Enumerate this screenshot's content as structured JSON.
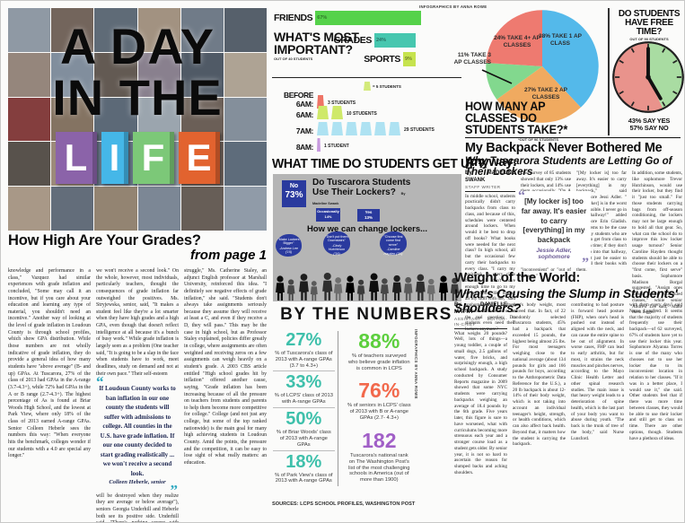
{
  "masthead": {
    "line1": "A DAY",
    "line2": "IN THE",
    "life": [
      "L",
      "I",
      "F",
      "E"
    ]
  },
  "credits": {
    "top": "INFOGRAPHICS BY ANNA ROWE",
    "side": "INFOGRAPHICS BY ANNA ROWE"
  },
  "whats_important": {
    "title_line1": "WHAT'S MOST",
    "title_line2": "IMPORTANT?",
    "note": "OUT OF 40 STUDENTS",
    "bars": [
      {
        "label": "FRIENDS",
        "pct": "67%"
      },
      {
        "label": "GRADES",
        "pct": "24%"
      },
      {
        "label": "SPORTS",
        "pct": "9%"
      }
    ],
    "chart_data": {
      "type": "bar",
      "categories": [
        "Friends",
        "Grades",
        "Sports"
      ],
      "values": [
        67,
        24,
        9
      ],
      "title": "What's Most Important?",
      "note": "out of 40 students",
      "colors": [
        "#55d24a",
        "#46c7af",
        "#c6e34e"
      ]
    }
  },
  "get_up": {
    "title": "WHAT TIME DO STUDENTS GET UP?",
    "legend": "= 5 STUDENTS",
    "rows": [
      {
        "label": "BEFORE 6AM:",
        "count": "3 STUDENTS"
      },
      {
        "label": "6AM:",
        "count": "10 STUDENTS"
      },
      {
        "label": "7AM:",
        "count": "29 STUDENTS"
      },
      {
        "label": "8AM:",
        "count": "1 STUDENT"
      }
    ],
    "chart_data": {
      "type": "pictograph-bar",
      "categories": [
        "Before 6AM",
        "6AM",
        "7AM",
        "8AM"
      ],
      "values": [
        3,
        10,
        29,
        1
      ],
      "unit": "5 students per icon",
      "title": "What Time Do Students Get Up?",
      "colors": [
        "#ee7466",
        "#cfe969",
        "#aee2f2",
        "#c79ade"
      ]
    }
  },
  "lockers_box": {
    "no_label": "No",
    "no_pct": "73%",
    "title": "Do Tuscarora Students Use Their Lockers?",
    "byline": "By Madeline Swank",
    "occasionally": "Occasionally",
    "occasionally_pct": "14%",
    "yes": "Yes",
    "yes_pct": "13%",
    "subtitle": "How we can change lockers...",
    "bubbles": [
      {
        "quote": "\"Make Lockers Bigger\"",
        "attrib": "-Andrew Lee ('15)"
      },
      {
        "quote": "\"Don't put them Downstairs\"",
        "attrib": "-Cindy Hutchinson ('16)"
      },
      {
        "quote": "\"Choose first come first serve\"",
        "attrib": "-Caroline Hayden ('15)"
      }
    ],
    "chart_data": {
      "type": "pie",
      "labels": [
        "No",
        "Occasionally",
        "Yes"
      ],
      "values": [
        73,
        14,
        13
      ],
      "title": "Do Tuscarora Students Use Their Lockers?"
    }
  },
  "by_the_numbers": {
    "title": "BY THE NUMBERS",
    "left": [
      {
        "value": "27%",
        "caption": "% of Tuscarora's class of 2013 with A-range GPAs (3.7 to 4.3+)"
      },
      {
        "value": "33%",
        "caption": "% of LCPS' class of 2013 with A-range GPAs"
      },
      {
        "value": "50%",
        "caption": "% of Briar Woods' class of 2013 with A-range GPAs"
      },
      {
        "value": "18%",
        "caption": "% of Park View's class of 2013 with A-range GPAs"
      }
    ],
    "right": [
      {
        "value": "88%",
        "caption": "% of teachers surveyed who believe grade inflation is common in LCPS"
      },
      {
        "value": "76%",
        "caption": "% of seniors in LCPS' class of 2013 with B or A-range GPAs (2.7- 4.3+)"
      },
      {
        "value": "182",
        "caption": "Tuscarora's national rank on The Washington Post's list of the most challenging schools in America (out of more than 1900)"
      }
    ],
    "sources": "SOURCES: LCPS SCHOOL PROFILES, WASHINGTON POST",
    "colors": {
      "teal": "#3ec0ab",
      "green": "#5ccf3d",
      "coral": "#f2694c",
      "purple": "#a15fc7"
    },
    "chart_data": {
      "type": "table",
      "stats": [
        {
          "value": 27,
          "unit": "%",
          "label": "Tuscarora class of 2013 with A-range GPAs (3.7 to 4.3+)"
        },
        {
          "value": 33,
          "unit": "%",
          "label": "LCPS class of 2013 with A-range GPAs"
        },
        {
          "value": 50,
          "unit": "%",
          "label": "Briar Woods class of 2013 with A-range GPAs"
        },
        {
          "value": 18,
          "unit": "%",
          "label": "Park View class of 2013 with A-range GPAs"
        },
        {
          "value": 88,
          "unit": "%",
          "label": "teachers surveyed who believe grade inflation is common in LCPS"
        },
        {
          "value": 76,
          "unit": "%",
          "label": "seniors in LCPS class of 2013 with B or A-range GPAs (2.7- 4.3+)"
        },
        {
          "value": 182,
          "unit": "rank",
          "label": "Tuscarora's national rank on The Washington Post's most challenging schools list (out of more than 1900)"
        }
      ]
    }
  },
  "ap_pie": {
    "title_line1": "HOW MANY AP",
    "title_line2": "CLASSES DO",
    "title_line3": "STUDENTS TAKE?*",
    "note": "*OUT OF 96 STUDENTS",
    "slice1": "38% TAKE 1 AP CLASS",
    "slice2": "27% TAKE 2 AP CLASSES",
    "slice3": "11% TAKE 3 AP CLASSES",
    "slice4": "24% TAKE 4+ AP CLASSES",
    "chart_data": {
      "type": "pie",
      "labels": [
        "1 AP class",
        "2 AP classes",
        "3 AP classes",
        "4+ AP classes"
      ],
      "values": [
        38,
        27,
        11,
        24
      ],
      "colors": [
        "#54b9ea",
        "#f0aa60",
        "#82d88e",
        "#ee7a70"
      ],
      "note": "out of 96 students",
      "title": "How Many AP Classes Do Students Take?"
    }
  },
  "free_time": {
    "title_line1": "DO STUDENTS",
    "title_line2": "HAVE FREE TIME?",
    "note": "OUT OF 90 STUDENTS",
    "result_yes": "43% SAY YES",
    "result_no": "57% SAY NO",
    "chart_data": {
      "type": "pie",
      "labels": [
        "Yes",
        "No"
      ],
      "values": [
        43,
        57
      ],
      "colors": [
        "#a9dca2",
        "#e9938c"
      ],
      "title": "Do Students Have Free Time?",
      "note": "out of 90 students"
    }
  },
  "grades_article": {
    "headline": "How High Are Your Grades?",
    "continued": "from page 1",
    "col1": "knowledge and performance in a class,\" Vazquez had similar experiences with grade inflation and concluded, \"Some may call it an incentive, but if you care about your education and learning any type of material, you shouldn't need an incentive.\" Another way of looking at the level of grade inflation in Loudoun County is through school profiles, which show GPA distribution. While those numbers are not wholly indicative of grade inflation, they do provide a general idea of how many students have \"above average\" (B- and up) GPAs. At Tuscarora, 27% of the class of 2013 had GPAs in the A-range (3.7-4.3+), while 72% had GPAs in the A or B range (2.7-4.3+). The highest percentage of As is found at Briar Woods High School, and the lowest at Park View, where only 18% of the class of 2013 earned A-range GPAs. Senior Colleen Heberle sees the numbers this way: \"When everyone hits the benchmark, colleges wonder if our students with a 4.0 are special any longer.\"",
    "col2_top": "we won't receive a second look.\" On the whole, however, most individuals, particularly teachers, thought the consequences of grade inflation far outweighed the positives. Ms. Stryjewska, senior, said, \"It makes a student feel like they're a lot smarter when they have high grades and a high GPA, even though that doesn't reflect intelligence at all because it's a bunch of busy work.\" While grade inflation is largely seen as a problem (One teacher said, \"It is going to be a slap in the face when students have to work, meet deadlines, study on demand and not at their own pace.\" Their self-esteem",
    "pull_quote": "If Loudoun County works to ban inflation in our one county the students will suffer with admissions to college. All counties in the U.S. have grade inflation. If our one county decided to start grading realistically ... we won't receive a second look.",
    "pull_attrib": "Colleen Heberle, senior",
    "col2_bottom": "will be destroyed when they realize they are average or below average\"), seniors Georgia Underhill and Heberle both see its positive side. Underhill said, \"There's nothing wrong with grade inflation because we live in a really competitive county.\"",
    "col3": "struggle,\" Ms. Catherine Staley, an adjunct English professor at Marshall University, reinforced this idea. \"I definitely see negative effects of grade inflation,\" she said. \"Students don't always take assignments seriously because they assume they will receive at least a C, and even if they receive a D, they will pass.\" This may be the case in high school, but as Professor Staley explained, policies differ greatly in college, where assignments are often weighted and receiving zeros on a few assignments can weigh heavily on a student's grade. A 2003 CBS article entitled \"High school grades hit by inflation\" offered another cause, saying, \"Grade inflation has been increasing because of all the pressure on teachers from students and parents to help them become more competitive for college.\" College (and not just any college, but some of the top ranked nationwide) is the main goal for many high achieving students in Loudoun County. Amid the points, the pressure and the competition, it can be easy to lose sight of what really matters: an education."
  },
  "backpack_article": {
    "headline": "My Backpack Never Bothered Me Anyway:",
    "subhead": "Why Tuscarora Students are Letting Go of Their Lockers",
    "byline": "By MADELINE SWANK",
    "byline_role": "STAFF WRITER",
    "colA": "In middle school, students practically didn't carry backpacks from class to class, and because of this, schedules were centered around lockers. When would it be best to drop off books? What books were needed for the next class? In high school, all but the occasional few carry their backpacks to every class. \"I carry my backpack to every class because I don't have enough time to go to my locker, and I like having all my stuff with me,\" said sophomore Sydney Haduba. This leads us to the real question: Do students even need their lockers anymore?",
    "colB": "One survey of 85 students showed that only 13% use their lockers, and 14% use them occasionally. \"On A days when I have a lot of books, I have a place to put them,\" said sophomore Sarina Hoskins. Others, like freshman Maddie Debucha, said, \"I like to use my locker to hold my coat.\" On the flip side, 73% of the 85 students surveyed don't even use their lockers; 33% claim their lockers are \"inconvenient\" or \"out of the way.\"",
    "colC": "\"[My locker is] too far away. It's easier to carry [everything] in my backpack,\" said sophomore Jessi Adler. \"[My locker] is in the worst spot possible. I never go in that hallway!\" added sophomore Erin Gladish. This seems to be the case for many students who are trying to get from class to class on time; if they don't even go into that hallway, it might just be easier to carry all their books with them.",
    "colD": "In addition, some students, like sophomore Trevor Hutchinson, would use their locker, but they find it \"just too small.\" For those students carrying bags from off-season conditioning, the lockers may not be large enough to hold all that gear. So, what can the school do to improve this low locker usage turnout? Senior Caroline Hayden thought students should be able to choose their lockers on a \"first come, first serve\" basis. Sophomore Madison Borgal suggested, \"Assign ones closer to the scheduled classes,\" while senior Andrew Lee said, \"Make them bigger.\"",
    "pull_quote": "[My locker is] too far away. It's easier to carry [everything] in my backpack",
    "pull_attrib": "Jessie Adler, sophomore"
  },
  "weight_article": {
    "headline": "Weight of the World:",
    "subhead": "What's Causing the Slump in Students' Shoulders?",
    "byline": "By DANIELLE MATTA",
    "byline_role": "ASSISTANT EDITOR-IN-CHIEF",
    "colA": "What weighs 20 pounds? Well, lots of things—a young toddler, a couple of small dogs, 2.5 gallons of water, five bricks, and surprisingly enough, a high school backpack. A study conducted by Consumer Reports magazine in 2009 showed that some NYC students were carrying backpacks weighing an average of 18.4 pounds by the 6th grade. Five years later, this figure is sure to have worsened, what with curriculums becoming more strenuous each year and a stronger course load as a student gets older. By senior year, it is not so hard to ascertain the reason for slumped backs and aching shoulders.",
    "colB": "dent's body weight, most exceed that. In fact, of 22 randomly selected Tuscarora students, 45% had a backpack that exceeded 15 pounds, the highest being almost 25 lbs. For most teenagers weighing close to the national average (about 134 pounds for girls and 166 pounds for boys, according to the Anthropometric Data Reference for the U.S.), a 20 lb backpack is about 12-14% of their body weight, which is not taking into account an individual teenager's height, strength, or health conditions, which can also affect back health. Beyond that, it matters how the student is carrying the backpack.",
    "colC": "contributing to bad posture is forward head posture (FHP), when one's head is pushed out instead of aligned with the neck, and can cause the entire spine to be out of alignment. In worse cases, FHP can lead to early arthritis, but for most, it strains the neck muscles and pinches nerves, according to the Mayo Clinic Health Letter and other spinal research studies. The main issue is that heavy weight leads to a deterioration of spine health, which is the last part of your body you want to abuse during youth. \"The back is the trunk of tree of the body,\" said Nurse Lunsford.",
    "colD": "with them every day,\" said Nurse Lunsford. It seems that the majority of students frequently use their backpack—of 62 surveyed, 67% of students have yet to use their locker this year. Sophomore Alyanna Torres is one of the many who chooses not to use her locker due to its inconvenient location in relation to her classes. \"If it was in a better place, I would use it,\" she said. Other students feel that if there was more time between classes, they would be able to use their locker and still get to class on time. There are other options, though. Students have a plethora of ideas."
  }
}
